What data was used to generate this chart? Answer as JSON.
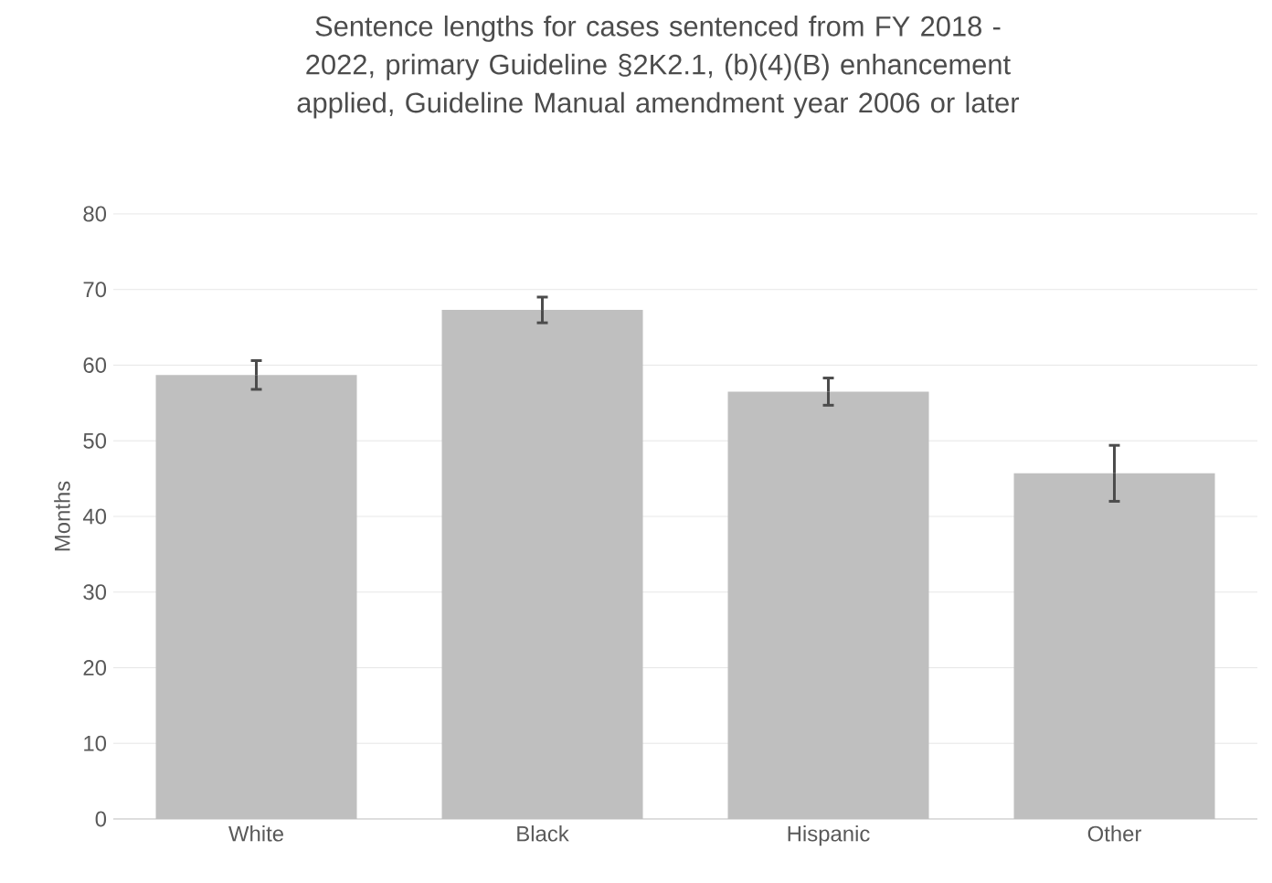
{
  "chart_data": {
    "type": "bar",
    "title": "Sentence lengths for cases sentenced from FY 2018 - 2022, primary Guideline §2K2.1, (b)(4)(B) enhancement applied, Guideline Manual amendment year 2006 or later",
    "ylabel": "Months",
    "categories": [
      "White",
      "Black",
      "Hispanic",
      "Other"
    ],
    "values": [
      58.7,
      67.3,
      56.5,
      45.7
    ],
    "errors": [
      1.9,
      1.7,
      1.8,
      3.7
    ],
    "color": "#bfbfbf",
    "ylim": [
      0,
      80
    ],
    "yticks": [
      0,
      10,
      20,
      30,
      40,
      50,
      60,
      70,
      80
    ],
    "grid": "y"
  }
}
